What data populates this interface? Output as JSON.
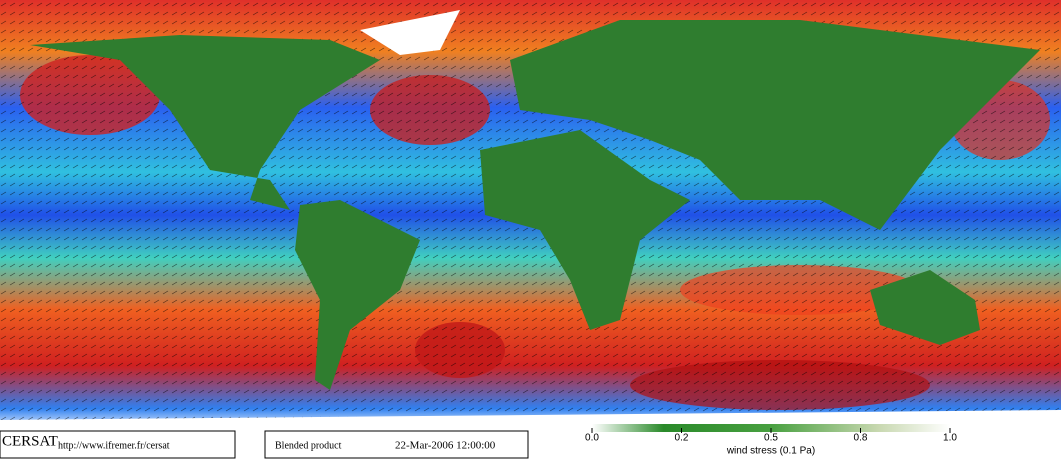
{
  "logo": "CERSAT",
  "url": "http://www.ifremer.fr/cersat",
  "product": "Blended product",
  "date": "22-Mar-2006 12:00:00",
  "colorbar": {
    "label": "wind stress (0.1 Pa)",
    "ticks": [
      {
        "value": 0,
        "label": "0.0"
      },
      0.2,
      0.5,
      0.8,
      {
        "value": 1,
        "label": "1.0"
      }
    ]
  }
}
